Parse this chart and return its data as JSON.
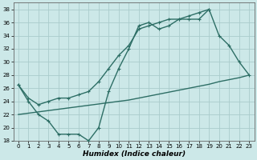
{
  "xlabel": "Humidex (Indice chaleur)",
  "background_color": "#cce8e8",
  "grid_color": "#aacccc",
  "line_color": "#2d6e65",
  "xlim": [
    -0.5,
    23.5
  ],
  "ylim": [
    18,
    39
  ],
  "xticks": [
    0,
    1,
    2,
    3,
    4,
    5,
    6,
    7,
    8,
    9,
    10,
    11,
    12,
    13,
    14,
    15,
    16,
    17,
    18,
    19,
    20,
    21,
    22,
    23
  ],
  "yticks": [
    18,
    20,
    22,
    24,
    26,
    28,
    30,
    32,
    34,
    36,
    38
  ],
  "series1_x": [
    0,
    1,
    2,
    3,
    4,
    5,
    6,
    7,
    8,
    9,
    10,
    11,
    12,
    13,
    14,
    15,
    16,
    17,
    18,
    19,
    20,
    21,
    22,
    23
  ],
  "series1_y": [
    26.5,
    24,
    22,
    21,
    19,
    19,
    19,
    18,
    20,
    25.5,
    29,
    32,
    35.5,
    36,
    35,
    35.5,
    36.5,
    36.5,
    36.5,
    38,
    34,
    32.5,
    30,
    28
  ],
  "series2_x": [
    0,
    1,
    2,
    3,
    4,
    5,
    6,
    7,
    8,
    9,
    10,
    11,
    12,
    13,
    14,
    15,
    16,
    17,
    18,
    19
  ],
  "series2_y": [
    26.5,
    24.5,
    23.5,
    24,
    24.5,
    24.5,
    25,
    25.5,
    27,
    29,
    31,
    32.5,
    35,
    35.5,
    36,
    36.5,
    36.5,
    37,
    37.5,
    38
  ],
  "series3_x": [
    0,
    1,
    2,
    3,
    4,
    5,
    6,
    7,
    8,
    9,
    10,
    11,
    12,
    13,
    14,
    15,
    16,
    17,
    18,
    19,
    20,
    21,
    22,
    23
  ],
  "series3_y": [
    22,
    22.2,
    22.4,
    22.6,
    22.8,
    23.0,
    23.2,
    23.4,
    23.6,
    23.8,
    24.0,
    24.2,
    24.5,
    24.8,
    25.1,
    25.4,
    25.7,
    26.0,
    26.3,
    26.6,
    27.0,
    27.3,
    27.6,
    28.0
  ],
  "linewidth": 1.0,
  "marker": "+",
  "markersize": 3.5,
  "markeredgewidth": 0.8,
  "tick_fontsize": 5,
  "xlabel_fontsize": 6.5
}
